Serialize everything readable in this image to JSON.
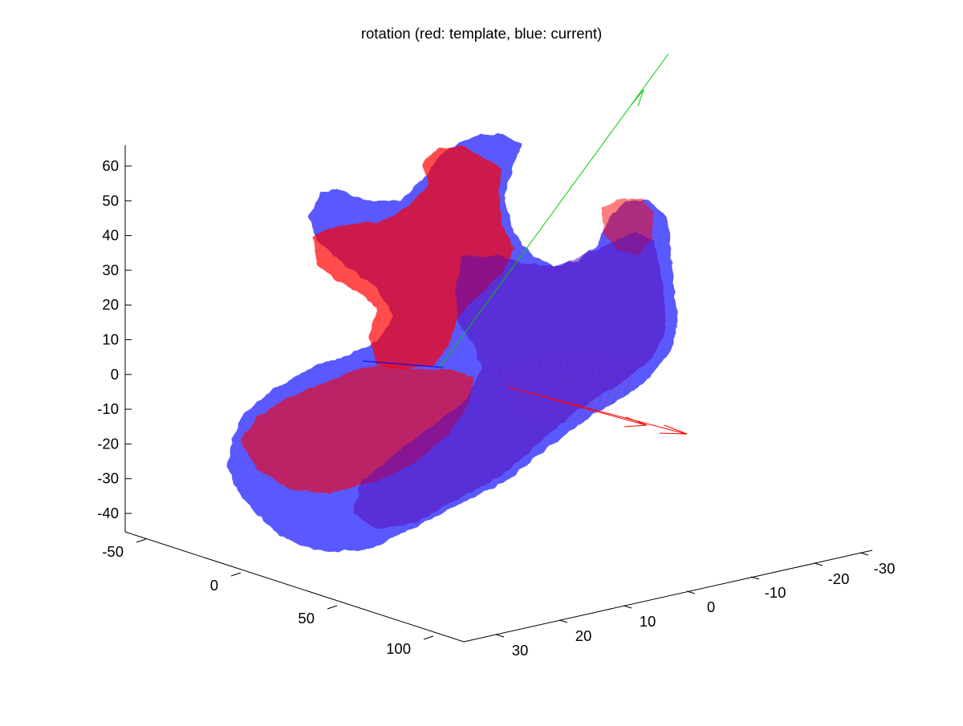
{
  "chart_data": {
    "type": "3d-surface",
    "title": "rotation (red: template, blue: current)",
    "series": [
      {
        "name": "template",
        "color": "#ff0000"
      },
      {
        "name": "current",
        "color": "#0000ff"
      }
    ],
    "z_axis": {
      "ticks": [
        "60",
        "50",
        "40",
        "30",
        "20",
        "10",
        "0",
        "-10",
        "-20",
        "-30",
        "-40"
      ],
      "range": [
        -45,
        65
      ]
    },
    "x_axis": {
      "ticks": [
        "-50",
        "0",
        "50",
        "100"
      ],
      "range": [
        -60,
        110
      ]
    },
    "y_axis": {
      "ticks": [
        "30",
        "20",
        "10",
        "0",
        "-10",
        "-20",
        "-30"
      ],
      "range": [
        -35,
        35
      ]
    },
    "annotations": {
      "axis_arrow_colors": [
        "#ff0000",
        "#00cc00",
        "#0000ff"
      ]
    },
    "grid": false
  }
}
